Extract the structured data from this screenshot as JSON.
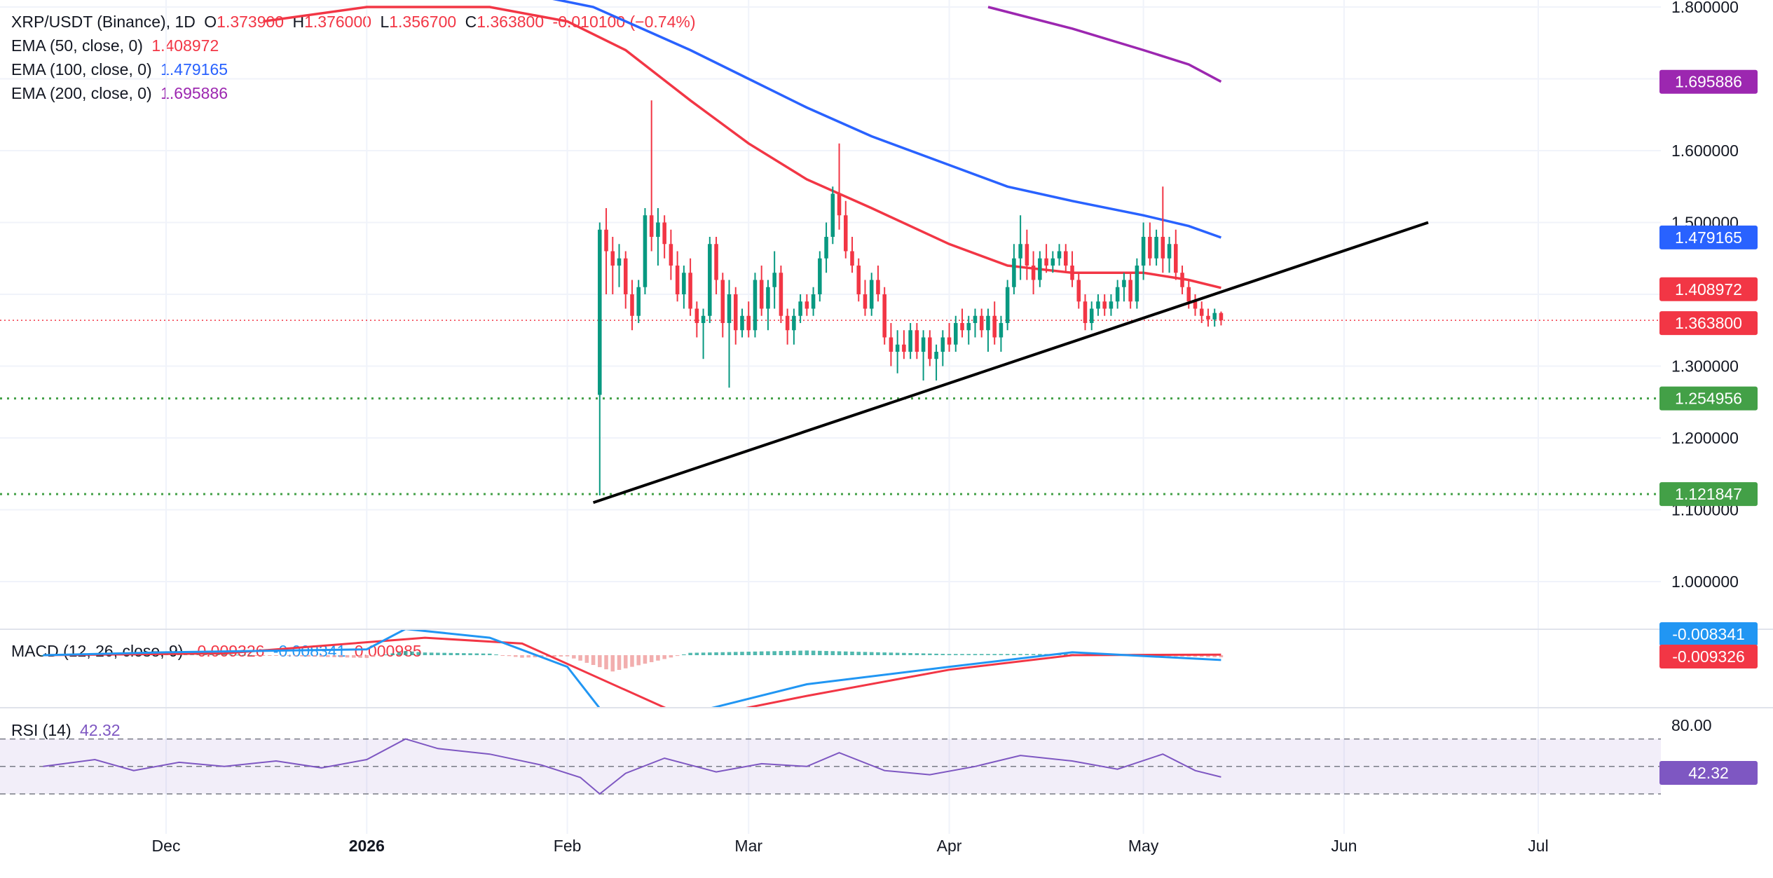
{
  "header": {
    "symbol": "XRP/USDT (Binance), 1D",
    "o_label": "O",
    "o_value": "1.373900",
    "h_label": "H",
    "h_value": "1.376000",
    "l_label": "L",
    "l_value": "1.356700",
    "c_label": "C",
    "c_value": "1.363800",
    "change": "-0.010100 (−0.74%)"
  },
  "ema_legends": [
    {
      "label": "EMA (50, close, 0)",
      "value": "1.408972",
      "color": "#f23645"
    },
    {
      "label": "EMA (100, close, 0)",
      "value": "1.479165",
      "color": "#2962ff"
    },
    {
      "label": "EMA (200, close, 0)",
      "value": "1.695886",
      "color": "#9c27b0"
    }
  ],
  "macd_legend": {
    "label": "MACD (12, 26, close, 9)",
    "hist": "-0.009326",
    "macd": "-0.008341",
    "signal": "0.000985"
  },
  "rsi_legend": {
    "label": "RSI (14)",
    "value": "42.32"
  },
  "chart_data": {
    "type": "candlestick",
    "price_axis_ticks": [
      "1.800000",
      "1.600000",
      "1.500000",
      "1.300000",
      "1.200000",
      "1.100000",
      "1.000000"
    ],
    "time_axis_labels": [
      "Dec",
      "2026",
      "Feb",
      "Mar",
      "Apr",
      "May",
      "Jun",
      "Jul"
    ],
    "rsi_axis_ticks": [
      "80.00"
    ],
    "price_tags": [
      {
        "value": "1.695886",
        "color": "#9c27b0"
      },
      {
        "value": "1.479165",
        "color": "#2962ff"
      },
      {
        "value": "1.408972",
        "color": "#f23645"
      },
      {
        "value": "1.363800",
        "color": "#f23645"
      },
      {
        "value": "1.254956",
        "color": "#43a047"
      },
      {
        "value": "1.121847",
        "color": "#43a047"
      }
    ],
    "macd_tags": [
      {
        "value": "-0.008341",
        "color": "#2196f3"
      },
      {
        "value": "-0.009326",
        "color": "#f23645"
      }
    ],
    "rsi_tag": {
      "value": "42.32",
      "color": "#7e57c2"
    },
    "support_levels": [
      1.254956,
      1.121847
    ],
    "trendline": {
      "start": {
        "date": "2026-02-05",
        "value": 1.11
      },
      "end": {
        "date": "2026-06-14",
        "value": 1.5
      }
    },
    "candles": [
      {
        "date": "2026-02-06",
        "o": 1.26,
        "h": 1.5,
        "l": 1.12,
        "c": 1.49
      },
      {
        "date": "2026-02-07",
        "o": 1.49,
        "h": 1.52,
        "l": 1.4,
        "c": 1.46
      },
      {
        "date": "2026-02-08",
        "o": 1.46,
        "h": 1.48,
        "l": 1.4,
        "c": 1.44
      },
      {
        "date": "2026-02-09",
        "o": 1.44,
        "h": 1.47,
        "l": 1.41,
        "c": 1.45
      },
      {
        "date": "2026-02-10",
        "o": 1.45,
        "h": 1.46,
        "l": 1.38,
        "c": 1.4
      },
      {
        "date": "2026-02-11",
        "o": 1.4,
        "h": 1.42,
        "l": 1.35,
        "c": 1.37
      },
      {
        "date": "2026-02-12",
        "o": 1.37,
        "h": 1.42,
        "l": 1.36,
        "c": 1.41
      },
      {
        "date": "2026-02-13",
        "o": 1.41,
        "h": 1.52,
        "l": 1.4,
        "c": 1.51
      },
      {
        "date": "2026-02-14",
        "o": 1.51,
        "h": 1.67,
        "l": 1.46,
        "c": 1.48
      },
      {
        "date": "2026-02-15",
        "o": 1.48,
        "h": 1.52,
        "l": 1.44,
        "c": 1.5
      },
      {
        "date": "2026-02-16",
        "o": 1.5,
        "h": 1.51,
        "l": 1.45,
        "c": 1.47
      },
      {
        "date": "2026-02-17",
        "o": 1.47,
        "h": 1.49,
        "l": 1.42,
        "c": 1.44
      },
      {
        "date": "2026-02-18",
        "o": 1.44,
        "h": 1.46,
        "l": 1.39,
        "c": 1.4
      },
      {
        "date": "2026-02-19",
        "o": 1.4,
        "h": 1.44,
        "l": 1.38,
        "c": 1.43
      },
      {
        "date": "2026-02-20",
        "o": 1.43,
        "h": 1.45,
        "l": 1.37,
        "c": 1.38
      },
      {
        "date": "2026-02-21",
        "o": 1.38,
        "h": 1.39,
        "l": 1.34,
        "c": 1.36
      },
      {
        "date": "2026-02-22",
        "o": 1.36,
        "h": 1.38,
        "l": 1.31,
        "c": 1.37
      },
      {
        "date": "2026-02-23",
        "o": 1.37,
        "h": 1.48,
        "l": 1.36,
        "c": 1.47
      },
      {
        "date": "2026-02-24",
        "o": 1.47,
        "h": 1.48,
        "l": 1.4,
        "c": 1.42
      },
      {
        "date": "2026-02-25",
        "o": 1.42,
        "h": 1.43,
        "l": 1.34,
        "c": 1.36
      },
      {
        "date": "2026-02-26",
        "o": 1.36,
        "h": 1.42,
        "l": 1.27,
        "c": 1.4
      },
      {
        "date": "2026-02-27",
        "o": 1.4,
        "h": 1.41,
        "l": 1.33,
        "c": 1.35
      },
      {
        "date": "2026-02-28",
        "o": 1.35,
        "h": 1.38,
        "l": 1.34,
        "c": 1.37
      },
      {
        "date": "2026-03-01",
        "o": 1.37,
        "h": 1.39,
        "l": 1.34,
        "c": 1.35
      },
      {
        "date": "2026-03-02",
        "o": 1.35,
        "h": 1.43,
        "l": 1.34,
        "c": 1.42
      },
      {
        "date": "2026-03-03",
        "o": 1.42,
        "h": 1.44,
        "l": 1.37,
        "c": 1.38
      },
      {
        "date": "2026-03-04",
        "o": 1.38,
        "h": 1.42,
        "l": 1.35,
        "c": 1.41
      },
      {
        "date": "2026-03-05",
        "o": 1.41,
        "h": 1.46,
        "l": 1.38,
        "c": 1.43
      },
      {
        "date": "2026-03-06",
        "o": 1.43,
        "h": 1.44,
        "l": 1.36,
        "c": 1.37
      },
      {
        "date": "2026-03-07",
        "o": 1.37,
        "h": 1.38,
        "l": 1.33,
        "c": 1.35
      },
      {
        "date": "2026-03-08",
        "o": 1.35,
        "h": 1.38,
        "l": 1.33,
        "c": 1.37
      },
      {
        "date": "2026-03-09",
        "o": 1.37,
        "h": 1.4,
        "l": 1.36,
        "c": 1.39
      },
      {
        "date": "2026-03-10",
        "o": 1.39,
        "h": 1.4,
        "l": 1.37,
        "c": 1.38
      },
      {
        "date": "2026-03-11",
        "o": 1.38,
        "h": 1.41,
        "l": 1.37,
        "c": 1.4
      },
      {
        "date": "2026-03-12",
        "o": 1.4,
        "h": 1.46,
        "l": 1.39,
        "c": 1.45
      },
      {
        "date": "2026-03-13",
        "o": 1.45,
        "h": 1.5,
        "l": 1.43,
        "c": 1.48
      },
      {
        "date": "2026-03-14",
        "o": 1.48,
        "h": 1.55,
        "l": 1.47,
        "c": 1.54
      },
      {
        "date": "2026-03-15",
        "o": 1.54,
        "h": 1.61,
        "l": 1.49,
        "c": 1.51
      },
      {
        "date": "2026-03-16",
        "o": 1.51,
        "h": 1.53,
        "l": 1.45,
        "c": 1.46
      },
      {
        "date": "2026-03-17",
        "o": 1.46,
        "h": 1.48,
        "l": 1.43,
        "c": 1.44
      },
      {
        "date": "2026-03-18",
        "o": 1.44,
        "h": 1.45,
        "l": 1.39,
        "c": 1.4
      },
      {
        "date": "2026-03-19",
        "o": 1.4,
        "h": 1.42,
        "l": 1.37,
        "c": 1.38
      },
      {
        "date": "2026-03-20",
        "o": 1.38,
        "h": 1.43,
        "l": 1.37,
        "c": 1.42
      },
      {
        "date": "2026-03-21",
        "o": 1.42,
        "h": 1.44,
        "l": 1.39,
        "c": 1.4
      },
      {
        "date": "2026-03-22",
        "o": 1.4,
        "h": 1.41,
        "l": 1.33,
        "c": 1.34
      },
      {
        "date": "2026-03-23",
        "o": 1.34,
        "h": 1.36,
        "l": 1.3,
        "c": 1.32
      },
      {
        "date": "2026-03-24",
        "o": 1.32,
        "h": 1.35,
        "l": 1.29,
        "c": 1.33
      },
      {
        "date": "2026-03-25",
        "o": 1.33,
        "h": 1.35,
        "l": 1.31,
        "c": 1.32
      },
      {
        "date": "2026-03-26",
        "o": 1.32,
        "h": 1.36,
        "l": 1.31,
        "c": 1.35
      },
      {
        "date": "2026-03-27",
        "o": 1.35,
        "h": 1.36,
        "l": 1.31,
        "c": 1.32
      },
      {
        "date": "2026-03-28",
        "o": 1.32,
        "h": 1.35,
        "l": 1.28,
        "c": 1.34
      },
      {
        "date": "2026-03-29",
        "o": 1.34,
        "h": 1.35,
        "l": 1.3,
        "c": 1.31
      },
      {
        "date": "2026-03-30",
        "o": 1.31,
        "h": 1.33,
        "l": 1.28,
        "c": 1.32
      },
      {
        "date": "2026-03-31",
        "o": 1.32,
        "h": 1.35,
        "l": 1.3,
        "c": 1.34
      },
      {
        "date": "2026-04-01",
        "o": 1.34,
        "h": 1.36,
        "l": 1.32,
        "c": 1.33
      },
      {
        "date": "2026-04-02",
        "o": 1.33,
        "h": 1.37,
        "l": 1.32,
        "c": 1.36
      },
      {
        "date": "2026-04-03",
        "o": 1.36,
        "h": 1.38,
        "l": 1.34,
        "c": 1.35
      },
      {
        "date": "2026-04-04",
        "o": 1.35,
        "h": 1.37,
        "l": 1.33,
        "c": 1.36
      },
      {
        "date": "2026-04-05",
        "o": 1.36,
        "h": 1.38,
        "l": 1.34,
        "c": 1.37
      },
      {
        "date": "2026-04-06",
        "o": 1.37,
        "h": 1.38,
        "l": 1.34,
        "c": 1.35
      },
      {
        "date": "2026-04-07",
        "o": 1.35,
        "h": 1.38,
        "l": 1.32,
        "c": 1.37
      },
      {
        "date": "2026-04-08",
        "o": 1.37,
        "h": 1.39,
        "l": 1.33,
        "c": 1.34
      },
      {
        "date": "2026-04-09",
        "o": 1.34,
        "h": 1.37,
        "l": 1.32,
        "c": 1.36
      },
      {
        "date": "2026-04-10",
        "o": 1.36,
        "h": 1.42,
        "l": 1.35,
        "c": 1.41
      },
      {
        "date": "2026-04-11",
        "o": 1.41,
        "h": 1.47,
        "l": 1.4,
        "c": 1.45
      },
      {
        "date": "2026-04-12",
        "o": 1.45,
        "h": 1.51,
        "l": 1.42,
        "c": 1.47
      },
      {
        "date": "2026-04-13",
        "o": 1.47,
        "h": 1.49,
        "l": 1.42,
        "c": 1.44
      },
      {
        "date": "2026-04-14",
        "o": 1.44,
        "h": 1.46,
        "l": 1.4,
        "c": 1.42
      },
      {
        "date": "2026-04-15",
        "o": 1.42,
        "h": 1.46,
        "l": 1.41,
        "c": 1.45
      },
      {
        "date": "2026-04-16",
        "o": 1.45,
        "h": 1.47,
        "l": 1.43,
        "c": 1.44
      },
      {
        "date": "2026-04-17",
        "o": 1.44,
        "h": 1.46,
        "l": 1.43,
        "c": 1.45
      },
      {
        "date": "2026-04-18",
        "o": 1.45,
        "h": 1.47,
        "l": 1.44,
        "c": 1.46
      },
      {
        "date": "2026-04-19",
        "o": 1.46,
        "h": 1.47,
        "l": 1.43,
        "c": 1.44
      },
      {
        "date": "2026-04-20",
        "o": 1.44,
        "h": 1.46,
        "l": 1.41,
        "c": 1.42
      },
      {
        "date": "2026-04-21",
        "o": 1.42,
        "h": 1.43,
        "l": 1.38,
        "c": 1.39
      },
      {
        "date": "2026-04-22",
        "o": 1.39,
        "h": 1.4,
        "l": 1.35,
        "c": 1.36
      },
      {
        "date": "2026-04-23",
        "o": 1.36,
        "h": 1.39,
        "l": 1.35,
        "c": 1.38
      },
      {
        "date": "2026-04-24",
        "o": 1.38,
        "h": 1.4,
        "l": 1.37,
        "c": 1.39
      },
      {
        "date": "2026-04-25",
        "o": 1.39,
        "h": 1.4,
        "l": 1.37,
        "c": 1.38
      },
      {
        "date": "2026-04-26",
        "o": 1.38,
        "h": 1.4,
        "l": 1.37,
        "c": 1.39
      },
      {
        "date": "2026-04-27",
        "o": 1.39,
        "h": 1.42,
        "l": 1.38,
        "c": 1.41
      },
      {
        "date": "2026-04-28",
        "o": 1.41,
        "h": 1.43,
        "l": 1.39,
        "c": 1.42
      },
      {
        "date": "2026-04-29",
        "o": 1.42,
        "h": 1.43,
        "l": 1.38,
        "c": 1.39
      },
      {
        "date": "2026-04-30",
        "o": 1.39,
        "h": 1.45,
        "l": 1.38,
        "c": 1.44
      },
      {
        "date": "2026-05-01",
        "o": 1.44,
        "h": 1.5,
        "l": 1.42,
        "c": 1.48
      },
      {
        "date": "2026-05-02",
        "o": 1.48,
        "h": 1.5,
        "l": 1.44,
        "c": 1.45
      },
      {
        "date": "2026-05-03",
        "o": 1.45,
        "h": 1.49,
        "l": 1.44,
        "c": 1.48
      },
      {
        "date": "2026-05-04",
        "o": 1.48,
        "h": 1.55,
        "l": 1.43,
        "c": 1.45
      },
      {
        "date": "2026-05-05",
        "o": 1.45,
        "h": 1.48,
        "l": 1.43,
        "c": 1.47
      },
      {
        "date": "2026-05-06",
        "o": 1.47,
        "h": 1.49,
        "l": 1.42,
        "c": 1.43
      },
      {
        "date": "2026-05-07",
        "o": 1.43,
        "h": 1.44,
        "l": 1.4,
        "c": 1.41
      },
      {
        "date": "2026-05-08",
        "o": 1.41,
        "h": 1.42,
        "l": 1.38,
        "c": 1.39
      },
      {
        "date": "2026-05-09",
        "o": 1.39,
        "h": 1.4,
        "l": 1.37,
        "c": 1.38
      },
      {
        "date": "2026-05-10",
        "o": 1.38,
        "h": 1.39,
        "l": 1.36,
        "c": 1.37
      },
      {
        "date": "2026-05-11",
        "o": 1.37,
        "h": 1.38,
        "l": 1.355,
        "c": 1.365
      },
      {
        "date": "2026-05-12",
        "o": 1.365,
        "h": 1.38,
        "l": 1.355,
        "c": 1.374
      },
      {
        "date": "2026-05-13",
        "o": 1.3739,
        "h": 1.376,
        "l": 1.3567,
        "c": 1.3638
      }
    ],
    "ema50": [
      {
        "date": "2025-12-16",
        "value": 1.78
      },
      {
        "date": "2026-01-01",
        "value": 1.8
      },
      {
        "date": "2026-01-20",
        "value": 1.8
      },
      {
        "date": "2026-02-01",
        "value": 1.78
      },
      {
        "date": "2026-02-10",
        "value": 1.74
      },
      {
        "date": "2026-02-20",
        "value": 1.67
      },
      {
        "date": "2026-03-01",
        "value": 1.61
      },
      {
        "date": "2026-03-10",
        "value": 1.56
      },
      {
        "date": "2026-03-20",
        "value": 1.52
      },
      {
        "date": "2026-04-01",
        "value": 1.47
      },
      {
        "date": "2026-04-10",
        "value": 1.44
      },
      {
        "date": "2026-04-20",
        "value": 1.43
      },
      {
        "date": "2026-05-01",
        "value": 1.43
      },
      {
        "date": "2026-05-08",
        "value": 1.42
      },
      {
        "date": "2026-05-13",
        "value": 1.409
      }
    ],
    "ema100": [
      {
        "date": "2026-01-25",
        "value": 1.82
      },
      {
        "date": "2026-02-05",
        "value": 1.8
      },
      {
        "date": "2026-02-20",
        "value": 1.74
      },
      {
        "date": "2026-03-01",
        "value": 1.7
      },
      {
        "date": "2026-03-10",
        "value": 1.66
      },
      {
        "date": "2026-03-20",
        "value": 1.62
      },
      {
        "date": "2026-04-01",
        "value": 1.58
      },
      {
        "date": "2026-04-10",
        "value": 1.55
      },
      {
        "date": "2026-04-20",
        "value": 1.53
      },
      {
        "date": "2026-05-01",
        "value": 1.51
      },
      {
        "date": "2026-05-08",
        "value": 1.495
      },
      {
        "date": "2026-05-13",
        "value": 1.479
      }
    ],
    "ema200": [
      {
        "date": "2026-04-07",
        "value": 1.8
      },
      {
        "date": "2026-04-20",
        "value": 1.77
      },
      {
        "date": "2026-05-01",
        "value": 1.74
      },
      {
        "date": "2026-05-08",
        "value": 1.72
      },
      {
        "date": "2026-05-13",
        "value": 1.696
      }
    ],
    "rsi": [
      {
        "date": "2025-11-12",
        "value": 50
      },
      {
        "date": "2025-11-20",
        "value": 55
      },
      {
        "date": "2025-11-26",
        "value": 47
      },
      {
        "date": "2025-12-03",
        "value": 53
      },
      {
        "date": "2025-12-10",
        "value": 50
      },
      {
        "date": "2025-12-18",
        "value": 54
      },
      {
        "date": "2025-12-25",
        "value": 49
      },
      {
        "date": "2026-01-01",
        "value": 55
      },
      {
        "date": "2026-01-07",
        "value": 70
      },
      {
        "date": "2026-01-12",
        "value": 63
      },
      {
        "date": "2026-01-20",
        "value": 59
      },
      {
        "date": "2026-01-28",
        "value": 51
      },
      {
        "date": "2026-02-03",
        "value": 42
      },
      {
        "date": "2026-02-06",
        "value": 30
      },
      {
        "date": "2026-02-10",
        "value": 45
      },
      {
        "date": "2026-02-16",
        "value": 56
      },
      {
        "date": "2026-02-24",
        "value": 46
      },
      {
        "date": "2026-03-03",
        "value": 52
      },
      {
        "date": "2026-03-10",
        "value": 50
      },
      {
        "date": "2026-03-15",
        "value": 60
      },
      {
        "date": "2026-03-22",
        "value": 47
      },
      {
        "date": "2026-03-29",
        "value": 44
      },
      {
        "date": "2026-04-05",
        "value": 50
      },
      {
        "date": "2026-04-12",
        "value": 58
      },
      {
        "date": "2026-04-20",
        "value": 54
      },
      {
        "date": "2026-04-27",
        "value": 48
      },
      {
        "date": "2026-05-04",
        "value": 59
      },
      {
        "date": "2026-05-09",
        "value": 47
      },
      {
        "date": "2026-05-13",
        "value": 42.32
      }
    ],
    "macd_line": [
      {
        "date": "2025-11-12",
        "value": 0.0
      },
      {
        "date": "2025-12-01",
        "value": 0.005
      },
      {
        "date": "2026-01-01",
        "value": 0.01
      },
      {
        "date": "2026-01-07",
        "value": 0.045
      },
      {
        "date": "2026-01-20",
        "value": 0.03
      },
      {
        "date": "2026-02-01",
        "value": -0.02
      },
      {
        "date": "2026-02-08",
        "value": -0.12
      },
      {
        "date": "2026-02-20",
        "value": -0.1
      },
      {
        "date": "2026-03-10",
        "value": -0.05
      },
      {
        "date": "2026-04-01",
        "value": -0.02
      },
      {
        "date": "2026-04-20",
        "value": 0.005
      },
      {
        "date": "2026-05-13",
        "value": -0.008341
      }
    ],
    "macd_signal": [
      {
        "date": "2025-11-12",
        "value": 0.0
      },
      {
        "date": "2025-12-10",
        "value": 0.003
      },
      {
        "date": "2026-01-10",
        "value": 0.03
      },
      {
        "date": "2026-01-25",
        "value": 0.02
      },
      {
        "date": "2026-02-10",
        "value": -0.06
      },
      {
        "date": "2026-02-20",
        "value": -0.11
      },
      {
        "date": "2026-03-10",
        "value": -0.07
      },
      {
        "date": "2026-04-01",
        "value": -0.025
      },
      {
        "date": "2026-04-20",
        "value": 0.0
      },
      {
        "date": "2026-05-13",
        "value": 0.000985
      }
    ]
  }
}
